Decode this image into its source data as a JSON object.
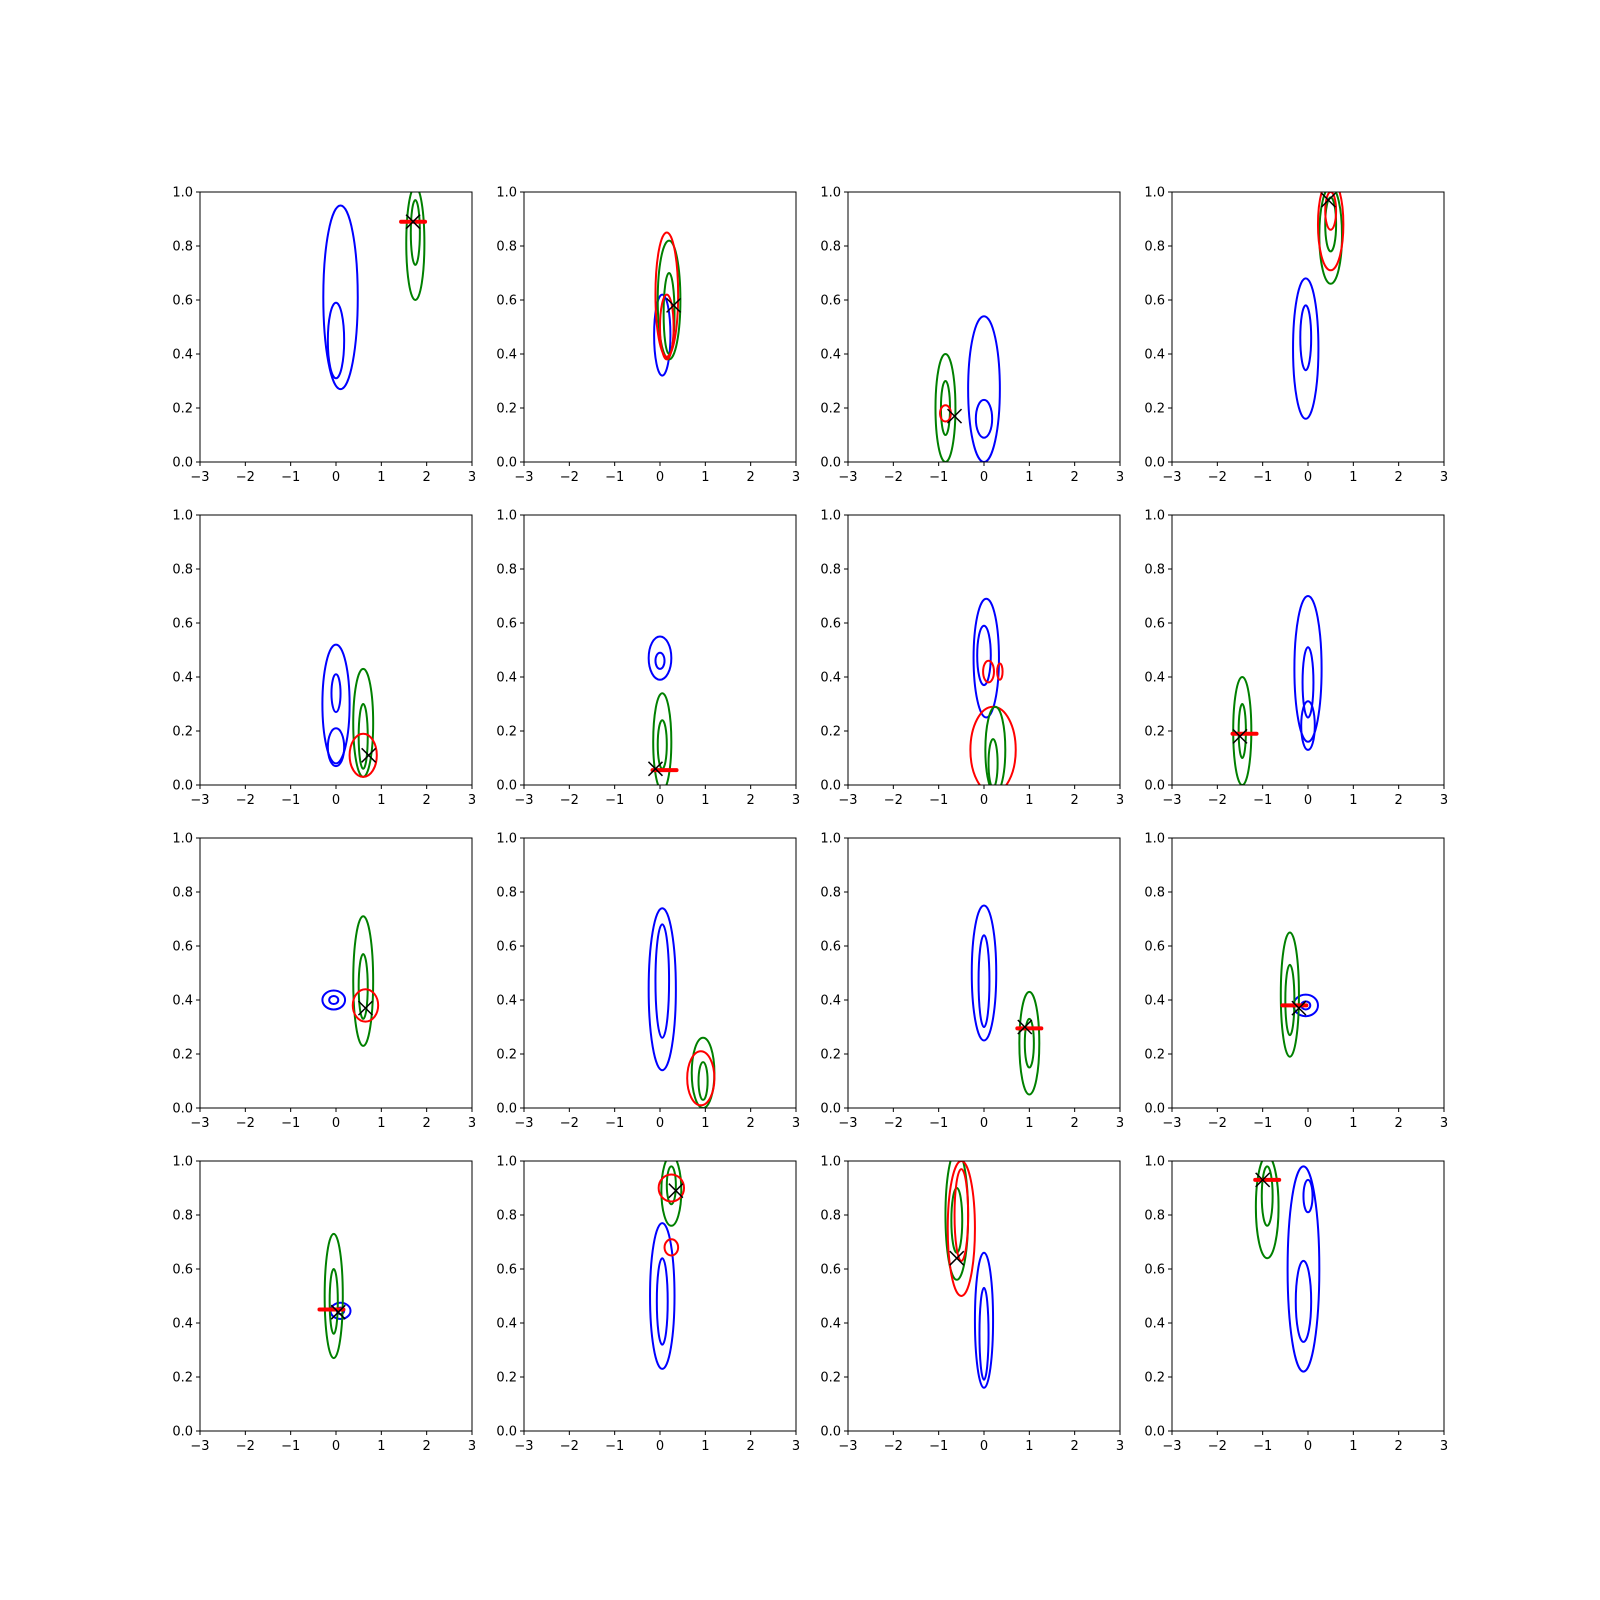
{
  "figure": {
    "rows": 4,
    "cols": 4,
    "colors": {
      "blue": "#0000ff",
      "green": "#008000",
      "red": "#ff0000",
      "marker": "#000000"
    }
  },
  "chart_data": [
    {
      "type": "contour",
      "xlim": [
        -3,
        3
      ],
      "ylim": [
        0,
        1
      ],
      "xticks": [
        "−3",
        "−2",
        "−1",
        "0",
        "1",
        "2",
        "3"
      ],
      "yticks": [
        "0.0",
        "0.2",
        "0.4",
        "0.6",
        "0.8",
        "1.0"
      ],
      "contours": [
        {
          "color": "blue",
          "cx": 0.1,
          "cy": 0.61,
          "rx": 0.38,
          "ry": 0.34
        },
        {
          "color": "blue",
          "cx": 0.0,
          "cy": 0.45,
          "rx": 0.18,
          "ry": 0.14
        },
        {
          "color": "green",
          "cx": 1.75,
          "cy": 0.81,
          "rx": 0.2,
          "ry": 0.21
        },
        {
          "color": "green",
          "cx": 1.75,
          "cy": 0.85,
          "rx": 0.1,
          "ry": 0.12
        }
      ],
      "red_marker": {
        "x": 1.7,
        "y": 0.89
      },
      "x_marker": {
        "x": 1.7,
        "y": 0.89
      }
    },
    {
      "type": "contour",
      "xlim": [
        -3,
        3
      ],
      "ylim": [
        0,
        1
      ],
      "xticks": [
        "−3",
        "−2",
        "−1",
        "0",
        "1",
        "2",
        "3"
      ],
      "yticks": [
        "0.0",
        "0.2",
        "0.4",
        "0.6",
        "0.8",
        "1.0"
      ],
      "contours": [
        {
          "color": "blue",
          "cx": 0.05,
          "cy": 0.47,
          "rx": 0.18,
          "ry": 0.15
        },
        {
          "color": "green",
          "cx": 0.2,
          "cy": 0.6,
          "rx": 0.25,
          "ry": 0.22
        },
        {
          "color": "green",
          "cx": 0.2,
          "cy": 0.55,
          "rx": 0.12,
          "ry": 0.15
        },
        {
          "color": "red",
          "cx": 0.15,
          "cy": 0.62,
          "rx": 0.25,
          "ry": 0.23
        },
        {
          "color": "red",
          "cx": 0.15,
          "cy": 0.5,
          "rx": 0.15,
          "ry": 0.12
        }
      ],
      "x_marker": {
        "x": 0.3,
        "y": 0.58
      }
    },
    {
      "type": "contour",
      "xlim": [
        -3,
        3
      ],
      "ylim": [
        0,
        1
      ],
      "xticks": [
        "−3",
        "−2",
        "−1",
        "0",
        "1",
        "2",
        "3"
      ],
      "yticks": [
        "0.0",
        "0.2",
        "0.4",
        "0.6",
        "0.8",
        "1.0"
      ],
      "contours": [
        {
          "color": "blue",
          "cx": 0.0,
          "cy": 0.27,
          "rx": 0.35,
          "ry": 0.27
        },
        {
          "color": "blue",
          "cx": 0.0,
          "cy": 0.16,
          "rx": 0.18,
          "ry": 0.07
        },
        {
          "color": "green",
          "cx": -0.85,
          "cy": 0.2,
          "rx": 0.22,
          "ry": 0.2
        },
        {
          "color": "green",
          "cx": -0.85,
          "cy": 0.2,
          "rx": 0.1,
          "ry": 0.1
        },
        {
          "color": "red",
          "cx": -0.85,
          "cy": 0.18,
          "rx": 0.12,
          "ry": 0.03
        }
      ],
      "x_marker": {
        "x": -0.65,
        "y": 0.17
      }
    },
    {
      "type": "contour",
      "xlim": [
        -3,
        3
      ],
      "ylim": [
        0,
        1
      ],
      "xticks": [
        "−3",
        "−2",
        "−1",
        "0",
        "1",
        "2",
        "3"
      ],
      "yticks": [
        "0.0",
        "0.2",
        "0.4",
        "0.6",
        "0.8",
        "1.0"
      ],
      "contours": [
        {
          "color": "blue",
          "cx": -0.05,
          "cy": 0.42,
          "rx": 0.28,
          "ry": 0.26
        },
        {
          "color": "blue",
          "cx": -0.05,
          "cy": 0.46,
          "rx": 0.12,
          "ry": 0.12
        },
        {
          "color": "green",
          "cx": 0.5,
          "cy": 0.84,
          "rx": 0.25,
          "ry": 0.18
        },
        {
          "color": "green",
          "cx": 0.5,
          "cy": 0.88,
          "rx": 0.12,
          "ry": 0.1
        },
        {
          "color": "red",
          "cx": 0.5,
          "cy": 0.88,
          "rx": 0.28,
          "ry": 0.17
        },
        {
          "color": "red",
          "cx": 0.5,
          "cy": 0.93,
          "rx": 0.12,
          "ry": 0.07
        }
      ],
      "x_marker": {
        "x": 0.45,
        "y": 0.97
      }
    },
    {
      "type": "contour",
      "xlim": [
        -3,
        3
      ],
      "ylim": [
        0,
        1
      ],
      "xticks": [
        "−3",
        "−2",
        "−1",
        "0",
        "1",
        "2",
        "3"
      ],
      "yticks": [
        "0.0",
        "0.2",
        "0.4",
        "0.6",
        "0.8",
        "1.0"
      ],
      "contours": [
        {
          "color": "blue",
          "cx": 0.0,
          "cy": 0.3,
          "rx": 0.3,
          "ry": 0.22
        },
        {
          "color": "blue",
          "cx": 0.0,
          "cy": 0.34,
          "rx": 0.1,
          "ry": 0.07
        },
        {
          "color": "blue",
          "cx": 0.0,
          "cy": 0.14,
          "rx": 0.18,
          "ry": 0.07
        },
        {
          "color": "green",
          "cx": 0.6,
          "cy": 0.23,
          "rx": 0.22,
          "ry": 0.2
        },
        {
          "color": "green",
          "cx": 0.6,
          "cy": 0.18,
          "rx": 0.1,
          "ry": 0.12
        },
        {
          "color": "red",
          "cx": 0.6,
          "cy": 0.11,
          "rx": 0.3,
          "ry": 0.08
        }
      ],
      "x_marker": {
        "x": 0.72,
        "y": 0.11
      }
    },
    {
      "type": "contour",
      "xlim": [
        -3,
        3
      ],
      "ylim": [
        0,
        1
      ],
      "xticks": [
        "−3",
        "−2",
        "−1",
        "0",
        "1",
        "2",
        "3"
      ],
      "yticks": [
        "0.0",
        "0.2",
        "0.4",
        "0.6",
        "0.8",
        "1.0"
      ],
      "contours": [
        {
          "color": "blue",
          "cx": 0.0,
          "cy": 0.47,
          "rx": 0.25,
          "ry": 0.08
        },
        {
          "color": "blue",
          "cx": 0.0,
          "cy": 0.46,
          "rx": 0.1,
          "ry": 0.03
        },
        {
          "color": "green",
          "cx": 0.05,
          "cy": 0.16,
          "rx": 0.2,
          "ry": 0.18
        },
        {
          "color": "green",
          "cx": 0.05,
          "cy": 0.15,
          "rx": 0.1,
          "ry": 0.09
        }
      ],
      "red_marker": {
        "x": 0.1,
        "y": 0.055
      },
      "x_marker": {
        "x": -0.1,
        "y": 0.06
      }
    },
    {
      "type": "contour",
      "xlim": [
        -3,
        3
      ],
      "ylim": [
        0,
        1
      ],
      "xticks": [
        "−3",
        "−2",
        "−1",
        "0",
        "1",
        "2",
        "3"
      ],
      "yticks": [
        "0.0",
        "0.2",
        "0.4",
        "0.6",
        "0.8",
        "1.0"
      ],
      "contours": [
        {
          "color": "blue",
          "cx": 0.05,
          "cy": 0.47,
          "rx": 0.28,
          "ry": 0.22
        },
        {
          "color": "blue",
          "cx": 0.0,
          "cy": 0.48,
          "rx": 0.15,
          "ry": 0.11
        },
        {
          "color": "red",
          "cx": 0.1,
          "cy": 0.42,
          "rx": 0.12,
          "ry": 0.04
        },
        {
          "color": "red",
          "cx": 0.35,
          "cy": 0.42,
          "rx": 0.06,
          "ry": 0.03
        },
        {
          "color": "red",
          "cx": 0.2,
          "cy": 0.13,
          "rx": 0.5,
          "ry": 0.16
        },
        {
          "color": "green",
          "cx": 0.25,
          "cy": 0.13,
          "rx": 0.22,
          "ry": 0.16
        },
        {
          "color": "green",
          "cx": 0.2,
          "cy": 0.08,
          "rx": 0.1,
          "ry": 0.09
        }
      ]
    },
    {
      "type": "contour",
      "xlim": [
        -3,
        3
      ],
      "ylim": [
        0,
        1
      ],
      "xticks": [
        "−3",
        "−2",
        "−1",
        "0",
        "1",
        "2",
        "3"
      ],
      "yticks": [
        "0.0",
        "0.2",
        "0.4",
        "0.6",
        "0.8",
        "1.0"
      ],
      "contours": [
        {
          "color": "blue",
          "cx": 0.0,
          "cy": 0.43,
          "rx": 0.3,
          "ry": 0.27
        },
        {
          "color": "blue",
          "cx": 0.0,
          "cy": 0.22,
          "rx": 0.15,
          "ry": 0.09
        },
        {
          "color": "blue",
          "cx": 0.0,
          "cy": 0.38,
          "rx": 0.12,
          "ry": 0.13
        },
        {
          "color": "green",
          "cx": -1.45,
          "cy": 0.2,
          "rx": 0.2,
          "ry": 0.2
        },
        {
          "color": "green",
          "cx": -1.45,
          "cy": 0.2,
          "rx": 0.08,
          "ry": 0.1
        }
      ],
      "red_marker": {
        "x": -1.4,
        "y": 0.19
      },
      "x_marker": {
        "x": -1.5,
        "y": 0.18
      }
    },
    {
      "type": "contour",
      "xlim": [
        -3,
        3
      ],
      "ylim": [
        0,
        1
      ],
      "xticks": [
        "−3",
        "−2",
        "−1",
        "0",
        "1",
        "2",
        "3"
      ],
      "yticks": [
        "0.0",
        "0.2",
        "0.4",
        "0.6",
        "0.8",
        "1.0"
      ],
      "contours": [
        {
          "color": "blue",
          "cx": -0.05,
          "cy": 0.4,
          "rx": 0.25,
          "ry": 0.035
        },
        {
          "color": "blue",
          "cx": -0.05,
          "cy": 0.4,
          "rx": 0.1,
          "ry": 0.015
        },
        {
          "color": "green",
          "cx": 0.6,
          "cy": 0.47,
          "rx": 0.22,
          "ry": 0.24
        },
        {
          "color": "green",
          "cx": 0.6,
          "cy": 0.45,
          "rx": 0.1,
          "ry": 0.12
        },
        {
          "color": "red",
          "cx": 0.65,
          "cy": 0.38,
          "rx": 0.28,
          "ry": 0.06
        }
      ],
      "x_marker": {
        "x": 0.65,
        "y": 0.37
      }
    },
    {
      "type": "contour",
      "xlim": [
        -3,
        3
      ],
      "ylim": [
        0,
        1
      ],
      "xticks": [
        "−3",
        "−2",
        "−1",
        "0",
        "1",
        "2",
        "3"
      ],
      "yticks": [
        "0.0",
        "0.2",
        "0.4",
        "0.6",
        "0.8",
        "1.0"
      ],
      "contours": [
        {
          "color": "blue",
          "cx": 0.05,
          "cy": 0.44,
          "rx": 0.3,
          "ry": 0.3
        },
        {
          "color": "blue",
          "cx": 0.05,
          "cy": 0.47,
          "rx": 0.15,
          "ry": 0.21
        },
        {
          "color": "green",
          "cx": 0.95,
          "cy": 0.13,
          "rx": 0.25,
          "ry": 0.13
        },
        {
          "color": "green",
          "cx": 0.95,
          "cy": 0.1,
          "rx": 0.1,
          "ry": 0.07
        },
        {
          "color": "red",
          "cx": 0.9,
          "cy": 0.11,
          "rx": 0.3,
          "ry": 0.1
        }
      ]
    },
    {
      "type": "contour",
      "xlim": [
        -3,
        3
      ],
      "ylim": [
        0,
        1
      ],
      "xticks": [
        "−3",
        "−2",
        "−1",
        "0",
        "1",
        "2",
        "3"
      ],
      "yticks": [
        "0.0",
        "0.2",
        "0.4",
        "0.6",
        "0.8",
        "1.0"
      ],
      "contours": [
        {
          "color": "blue",
          "cx": 0.0,
          "cy": 0.5,
          "rx": 0.27,
          "ry": 0.25
        },
        {
          "color": "blue",
          "cx": 0.0,
          "cy": 0.47,
          "rx": 0.12,
          "ry": 0.17
        },
        {
          "color": "green",
          "cx": 1.0,
          "cy": 0.24,
          "rx": 0.22,
          "ry": 0.19
        },
        {
          "color": "green",
          "cx": 1.0,
          "cy": 0.24,
          "rx": 0.1,
          "ry": 0.09
        }
      ],
      "red_marker": {
        "x": 1.0,
        "y": 0.295
      },
      "x_marker": {
        "x": 0.9,
        "y": 0.3
      }
    },
    {
      "type": "contour",
      "xlim": [
        -3,
        3
      ],
      "ylim": [
        0,
        1
      ],
      "xticks": [
        "−3",
        "−2",
        "−1",
        "0",
        "1",
        "2",
        "3"
      ],
      "yticks": [
        "0.0",
        "0.2",
        "0.4",
        "0.6",
        "0.8",
        "1.0"
      ],
      "contours": [
        {
          "color": "blue",
          "cx": -0.05,
          "cy": 0.38,
          "rx": 0.27,
          "ry": 0.04
        },
        {
          "color": "blue",
          "cx": -0.05,
          "cy": 0.38,
          "rx": 0.1,
          "ry": 0.015
        },
        {
          "color": "green",
          "cx": -0.4,
          "cy": 0.42,
          "rx": 0.2,
          "ry": 0.23
        },
        {
          "color": "green",
          "cx": -0.4,
          "cy": 0.4,
          "rx": 0.1,
          "ry": 0.13
        }
      ],
      "red_marker": {
        "x": -0.3,
        "y": 0.38
      },
      "x_marker": {
        "x": -0.2,
        "y": 0.37
      }
    },
    {
      "type": "contour",
      "xlim": [
        -3,
        3
      ],
      "ylim": [
        0,
        1
      ],
      "xticks": [
        "−3",
        "−2",
        "−1",
        "0",
        "1",
        "2",
        "3"
      ],
      "yticks": [
        "0.0",
        "0.2",
        "0.4",
        "0.6",
        "0.8",
        "1.0"
      ],
      "contours": [
        {
          "color": "blue",
          "cx": 0.1,
          "cy": 0.445,
          "rx": 0.22,
          "ry": 0.03
        },
        {
          "color": "blue",
          "cx": 0.1,
          "cy": 0.445,
          "rx": 0.08,
          "ry": 0.012
        },
        {
          "color": "green",
          "cx": -0.05,
          "cy": 0.5,
          "rx": 0.2,
          "ry": 0.23
        },
        {
          "color": "green",
          "cx": -0.05,
          "cy": 0.48,
          "rx": 0.09,
          "ry": 0.12
        }
      ],
      "red_marker": {
        "x": -0.1,
        "y": 0.45
      },
      "x_marker": {
        "x": 0.05,
        "y": 0.44
      }
    },
    {
      "type": "contour",
      "xlim": [
        -3,
        3
      ],
      "ylim": [
        0,
        1
      ],
      "xticks": [
        "−3",
        "−2",
        "−1",
        "0",
        "1",
        "2",
        "3"
      ],
      "yticks": [
        "0.0",
        "0.2",
        "0.4",
        "0.6",
        "0.8",
        "1.0"
      ],
      "contours": [
        {
          "color": "blue",
          "cx": 0.05,
          "cy": 0.5,
          "rx": 0.27,
          "ry": 0.27
        },
        {
          "color": "blue",
          "cx": 0.05,
          "cy": 0.48,
          "rx": 0.12,
          "ry": 0.16
        },
        {
          "color": "green",
          "cx": 0.25,
          "cy": 0.89,
          "rx": 0.22,
          "ry": 0.13
        },
        {
          "color": "green",
          "cx": 0.25,
          "cy": 0.91,
          "rx": 0.1,
          "ry": 0.07
        },
        {
          "color": "red",
          "cx": 0.25,
          "cy": 0.9,
          "rx": 0.28,
          "ry": 0.05
        },
        {
          "color": "red",
          "cx": 0.25,
          "cy": 0.68,
          "rx": 0.15,
          "ry": 0.03
        }
      ],
      "x_marker": {
        "x": 0.35,
        "y": 0.89
      }
    },
    {
      "type": "contour",
      "xlim": [
        -3,
        3
      ],
      "ylim": [
        0,
        1
      ],
      "xticks": [
        "−3",
        "−2",
        "−1",
        "0",
        "1",
        "2",
        "3"
      ],
      "yticks": [
        "0.0",
        "0.2",
        "0.4",
        "0.6",
        "0.8",
        "1.0"
      ],
      "contours": [
        {
          "color": "blue",
          "cx": 0.0,
          "cy": 0.41,
          "rx": 0.2,
          "ry": 0.25
        },
        {
          "color": "blue",
          "cx": 0.0,
          "cy": 0.36,
          "rx": 0.1,
          "ry": 0.17
        },
        {
          "color": "green",
          "cx": -0.6,
          "cy": 0.8,
          "rx": 0.25,
          "ry": 0.24
        },
        {
          "color": "green",
          "cx": -0.6,
          "cy": 0.78,
          "rx": 0.12,
          "ry": 0.12
        },
        {
          "color": "red",
          "cx": -0.5,
          "cy": 0.75,
          "rx": 0.3,
          "ry": 0.25
        },
        {
          "color": "red",
          "cx": -0.5,
          "cy": 0.8,
          "rx": 0.15,
          "ry": 0.17
        }
      ],
      "x_marker": {
        "x": -0.6,
        "y": 0.64
      }
    },
    {
      "type": "contour",
      "xlim": [
        -3,
        3
      ],
      "ylim": [
        0,
        1
      ],
      "xticks": [
        "−3",
        "−2",
        "−1",
        "0",
        "1",
        "2",
        "3"
      ],
      "yticks": [
        "0.0",
        "0.2",
        "0.4",
        "0.6",
        "0.8",
        "1.0"
      ],
      "contours": [
        {
          "color": "blue",
          "cx": -0.1,
          "cy": 0.6,
          "rx": 0.35,
          "ry": 0.38
        },
        {
          "color": "blue",
          "cx": -0.1,
          "cy": 0.48,
          "rx": 0.17,
          "ry": 0.15
        },
        {
          "color": "blue",
          "cx": 0.0,
          "cy": 0.87,
          "rx": 0.1,
          "ry": 0.06
        },
        {
          "color": "green",
          "cx": -0.9,
          "cy": 0.83,
          "rx": 0.25,
          "ry": 0.19
        },
        {
          "color": "green",
          "cx": -0.9,
          "cy": 0.87,
          "rx": 0.12,
          "ry": 0.11
        }
      ],
      "red_marker": {
        "x": -0.9,
        "y": 0.93
      },
      "x_marker": {
        "x": -1.0,
        "y": 0.93
      }
    }
  ]
}
